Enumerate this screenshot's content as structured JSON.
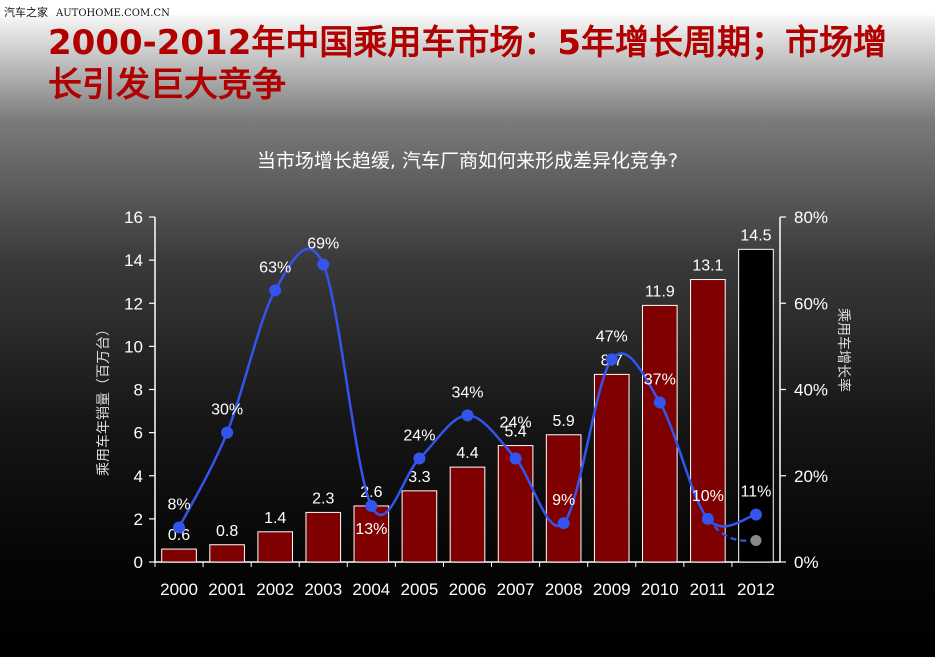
{
  "header": {
    "watermark_brand": "汽车之家",
    "watermark_site": "AUTOHOME.COM.CN",
    "title": "2000-2012年中国乘用车市场：5年增长周期；市场增长引发巨大竞争"
  },
  "chart_data": {
    "type": "bar",
    "title": "当市场增长趋缓, 汽车厂商如何来形成差异化竞争?",
    "categories": [
      "2000",
      "2001",
      "2002",
      "2003",
      "2004",
      "2005",
      "2006",
      "2007",
      "2008",
      "2009",
      "2010",
      "2011",
      "2012"
    ],
    "series": [
      {
        "name": "乘用车年销量",
        "axis": "left",
        "values": [
          0.6,
          0.8,
          1.4,
          2.3,
          2.6,
          3.3,
          4.4,
          5.4,
          5.9,
          8.7,
          11.9,
          13.1,
          14.5
        ],
        "labels": [
          "0.6",
          "0.8",
          "1.4",
          "2.3",
          "2.6",
          "3.3",
          "4.4",
          "5.4",
          "5.9",
          "8.7",
          "11.9",
          "13.1",
          "14.5"
        ],
        "color": "#7f0000",
        "forecast_index": 12,
        "forecast_fill": "#000000"
      },
      {
        "name": "乘用车增长率",
        "type": "line",
        "axis": "right",
        "values": [
          8,
          30,
          63,
          69,
          13,
          24,
          34,
          24,
          9,
          47,
          37,
          10,
          11
        ],
        "labels": [
          "8%",
          "30%",
          "63%",
          "69%",
          "13%",
          "24%",
          "34%",
          "24%",
          "9%",
          "47%",
          "37%",
          "10%",
          "11%"
        ],
        "color": "#3355ee",
        "forecast_value": 5,
        "forecast_color": "#888888"
      }
    ],
    "ylabel": "乘用车年销量（百万台）",
    "y2label": "乘用车增长率",
    "ylim": [
      0,
      16
    ],
    "yticks": [
      "0",
      "2",
      "4",
      "6",
      "8",
      "10",
      "12",
      "14",
      "16"
    ],
    "y2lim": [
      0,
      80
    ],
    "y2ticks": [
      "0%",
      "20%",
      "40%",
      "60%",
      "80%"
    ],
    "grid": false,
    "axis_color": "#ffffff",
    "label_color": "#ffffff"
  }
}
